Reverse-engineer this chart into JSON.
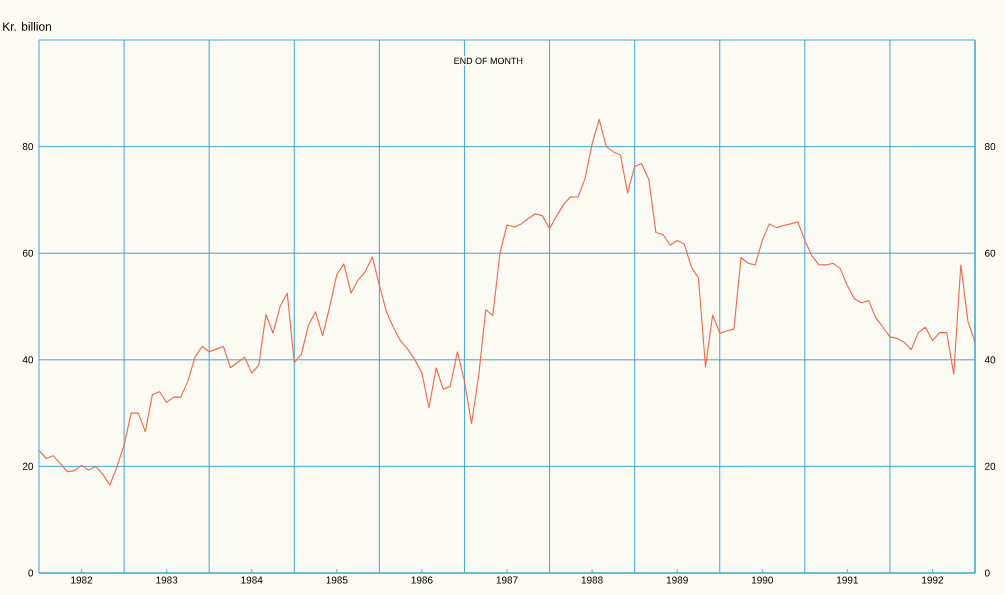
{
  "chart_data": {
    "type": "line",
    "ylabel": "Kr. billion",
    "annotations": [
      "END OF MONTH"
    ],
    "color": "#f0674c",
    "x": [
      1982,
      1982.083,
      1982.167,
      1982.25,
      1982.333,
      1982.417,
      1982.5,
      1982.583,
      1982.667,
      1982.75,
      1982.833,
      1982.917,
      1983,
      1983.083,
      1983.167,
      1983.25,
      1983.333,
      1983.417,
      1983.5,
      1983.583,
      1983.667,
      1983.75,
      1983.833,
      1983.917,
      1984,
      1984.083,
      1984.167,
      1984.25,
      1984.333,
      1984.417,
      1984.5,
      1984.583,
      1984.667,
      1984.75,
      1984.833,
      1984.917,
      1985,
      1985.083,
      1985.167,
      1985.25,
      1985.333,
      1985.417,
      1985.5,
      1985.583,
      1985.667,
      1985.75,
      1985.833,
      1985.917,
      1986,
      1986.083,
      1986.167,
      1986.25,
      1986.333,
      1986.417,
      1986.5,
      1986.583,
      1986.667,
      1986.75,
      1986.833,
      1986.917,
      1987,
      1987.083,
      1987.167,
      1987.25,
      1987.333,
      1987.417,
      1987.5,
      1987.583,
      1987.667,
      1987.75,
      1987.833,
      1987.917,
      1988,
      1988.083,
      1988.167,
      1988.25,
      1988.333,
      1988.417,
      1988.5,
      1988.583,
      1988.667,
      1988.75,
      1988.833,
      1988.917,
      1989,
      1989.083,
      1989.167,
      1989.25,
      1989.333,
      1989.417,
      1989.5,
      1989.583,
      1989.667,
      1989.75,
      1989.833,
      1989.917,
      1990,
      1990.083,
      1990.167,
      1990.25,
      1990.333,
      1990.417,
      1990.5,
      1990.583,
      1990.667,
      1990.75,
      1990.833,
      1990.917,
      1991,
      1991.083,
      1991.167,
      1991.25,
      1991.333,
      1991.417,
      1991.5,
      1991.583,
      1991.667,
      1991.75,
      1991.833,
      1991.917,
      1992,
      1992.083,
      1992.167,
      1992.25,
      1992.333,
      1992.417,
      1992.5,
      1992.583,
      1992.667,
      1992.75,
      1992.833,
      1992.917,
      1993
    ],
    "values": [
      23,
      21.5,
      22,
      20.5,
      19,
      19.2,
      20.2,
      19.3,
      20,
      18.5,
      16.5,
      20,
      24,
      30,
      30,
      26.5,
      33.5,
      34,
      32,
      33,
      33,
      36,
      40.5,
      42.5,
      41.5,
      42,
      42.5,
      38.5,
      39.5,
      40.5,
      37.5,
      39,
      48.5,
      45,
      50,
      52.5,
      39.5,
      41,
      46.5,
      49,
      44.5,
      50,
      56,
      58,
      52.5,
      55,
      56.5,
      59.3,
      54,
      49,
      46,
      43.5,
      42,
      40,
      37.5,
      31,
      38.5,
      34.5,
      35,
      41.5,
      36,
      28,
      37,
      49.4,
      48.3,
      60,
      65.3,
      64.9,
      65.5,
      66.5,
      67.4,
      67,
      64.6,
      67,
      69.2,
      70.6,
      70.5,
      74,
      80.5,
      85.1,
      80,
      79,
      78.4,
      71.3,
      76.3,
      76.8,
      73.8,
      63.9,
      63.5,
      61.5,
      62.4,
      61.7,
      57.4,
      55.3,
      38.7,
      48.4,
      45,
      45.4,
      45.8,
      59.2,
      58.1,
      57.8,
      62.4,
      65.5,
      64.8,
      65.2,
      65.5,
      65.9,
      62.4,
      59.5,
      57.8,
      57.8,
      58.1,
      57.1,
      53.9,
      51.4,
      50.7,
      51.1,
      47.9,
      46.1,
      44.3,
      44,
      43.3,
      41.9,
      45.1,
      46.1,
      43.6,
      45.1,
      45.1,
      37.3,
      57.8,
      47.2,
      43.3
    ],
    "xlim": [
      1982,
      1993
    ],
    "xticks": [
      {
        "value": 1982.5,
        "label": "1982"
      },
      {
        "value": 1983.5,
        "label": "1983"
      },
      {
        "value": 1984.5,
        "label": "1984"
      },
      {
        "value": 1985.5,
        "label": "1985"
      },
      {
        "value": 1986.5,
        "label": "1986"
      },
      {
        "value": 1987.5,
        "label": "1987"
      },
      {
        "value": 1988.5,
        "label": "1988"
      },
      {
        "value": 1989.5,
        "label": "1989"
      },
      {
        "value": 1990.5,
        "label": "1990"
      },
      {
        "value": 1991.5,
        "label": "1991"
      },
      {
        "value": 1992.5,
        "label": "1992"
      },
      {
        "value": 1983,
        "label": null
      },
      {
        "value": 1984,
        "label": null
      },
      {
        "value": 1985,
        "label": null
      },
      {
        "value": 1986,
        "label": null
      },
      {
        "value": 1987,
        "label": null
      },
      {
        "value": 1988,
        "label": null
      },
      {
        "value": 1989,
        "label": null
      },
      {
        "value": 1990,
        "label": null
      },
      {
        "value": 1991,
        "label": null
      },
      {
        "value": 1992,
        "label": null
      }
    ],
    "ylim": [
      0,
      100
    ],
    "yticks": [
      0,
      20,
      40,
      60,
      80
    ],
    "y2lim": [
      0,
      100
    ],
    "y2ticks": [
      0,
      20,
      40,
      60,
      80
    ],
    "grid": true
  }
}
